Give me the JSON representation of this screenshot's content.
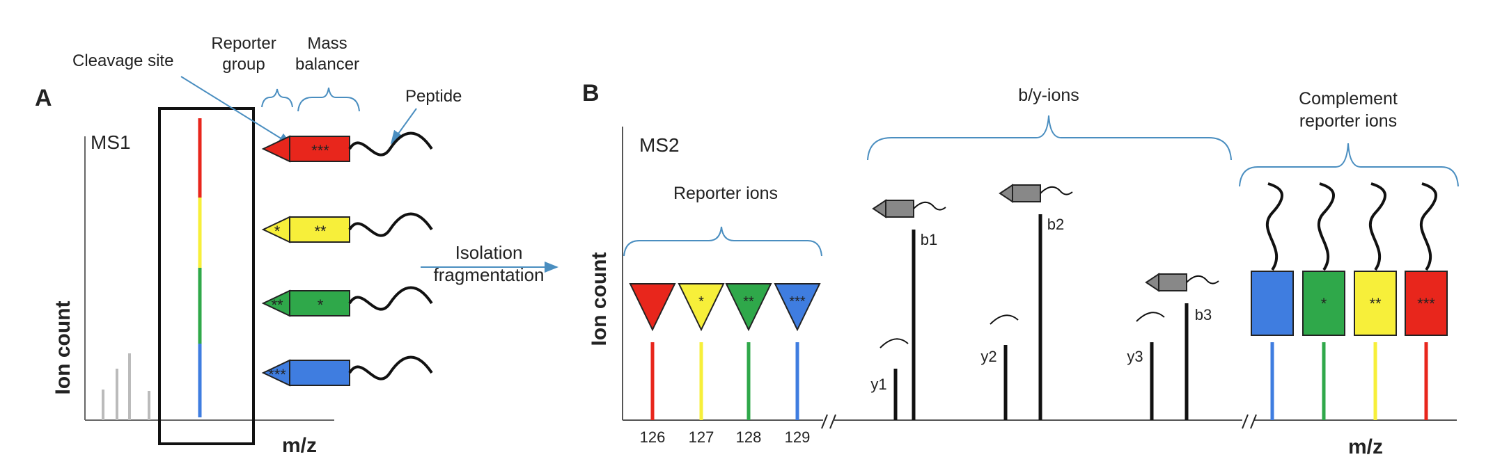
{
  "panel_a": {
    "letter": "A",
    "ms_label": "MS1",
    "y_axis_label": "Ion count",
    "x_axis_label": "m/z",
    "cleavage_label": "Cleavage site",
    "reporter_group_label_1": "Reporter",
    "reporter_group_label_2": "group",
    "mass_balancer_label_1": "Mass",
    "mass_balancer_label_2": "balancer",
    "peptide_label": "Peptide",
    "tags": [
      {
        "color": "#e8261c",
        "head_mark": "",
        "body_mark": "***"
      },
      {
        "color": "#f7ef3a",
        "head_mark": "*",
        "body_mark": "**"
      },
      {
        "color": "#2fa84a",
        "head_mark": "**",
        "body_mark": "*"
      },
      {
        "color": "#3f7de0",
        "head_mark": "***",
        "body_mark": ""
      }
    ]
  },
  "arrow": {
    "label_1": "Isolation",
    "label_2": "fragmentation"
  },
  "panel_b": {
    "letter": "B",
    "ms_label": "MS2",
    "y_axis_label": "Ion count",
    "x_axis_label": "m/z",
    "reporter_ions_label": "Reporter ions",
    "by_ions_label": "b/y-ions",
    "complement_label_1": "Complement",
    "complement_label_2": "reporter ions",
    "reporters": [
      {
        "mz": "126",
        "color": "#e8261c",
        "mark": ""
      },
      {
        "mz": "127",
        "color": "#f7ef3a",
        "mark": "*"
      },
      {
        "mz": "128",
        "color": "#2fa84a",
        "mark": "**"
      },
      {
        "mz": "129",
        "color": "#3f7de0",
        "mark": "***"
      }
    ],
    "fragment_peaks": [
      {
        "label": "y1"
      },
      {
        "label": "b1"
      },
      {
        "label": "y2"
      },
      {
        "label": "b2"
      },
      {
        "label": "y3"
      },
      {
        "label": "b3"
      }
    ],
    "complements": [
      {
        "color": "#3f7de0",
        "mark": ""
      },
      {
        "color": "#2fa84a",
        "mark": "*"
      },
      {
        "color": "#f7ef3a",
        "mark": "**"
      },
      {
        "color": "#e8261c",
        "mark": "***"
      }
    ]
  }
}
